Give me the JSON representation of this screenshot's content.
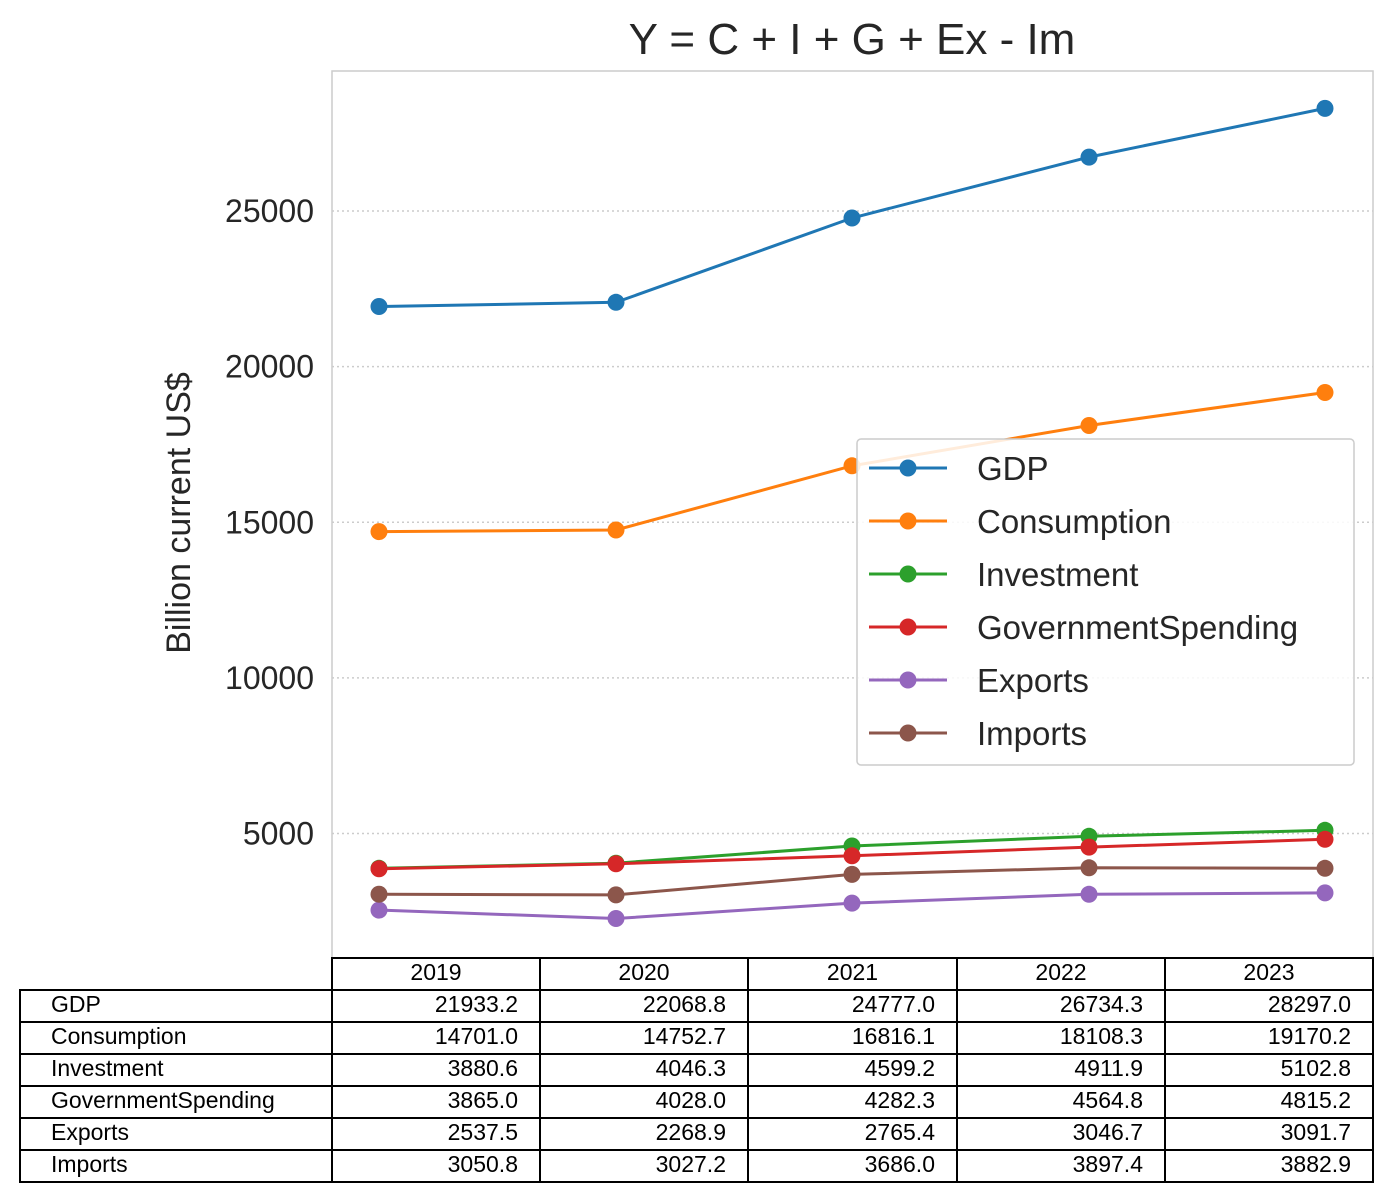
{
  "chart_data": {
    "type": "line",
    "title": "Y = C + I + G + Ex - Im",
    "ylabel": "Billion current US$",
    "xlabel": "",
    "categories": [
      "2019",
      "2020",
      "2021",
      "2022",
      "2023"
    ],
    "ylim": [
      1000,
      29500
    ],
    "yticks": [
      "5000",
      "10000",
      "15000",
      "20000",
      "25000"
    ],
    "grid": "horizontal dotted",
    "legend_position": "center-right",
    "series": [
      {
        "name": "GDP",
        "color": "#1f77b4",
        "values": [
          21933.2,
          22068.8,
          24777.0,
          26734.3,
          28297.0
        ],
        "labels": [
          "21933.2",
          "22068.8",
          "24777.0",
          "26734.3",
          "28297.0"
        ]
      },
      {
        "name": "Consumption",
        "color": "#ff7f0e",
        "values": [
          14701.0,
          14752.7,
          16816.1,
          18108.3,
          19170.2
        ],
        "labels": [
          "14701.0",
          "14752.7",
          "16816.1",
          "18108.3",
          "19170.2"
        ]
      },
      {
        "name": "Investment",
        "color": "#2ca02c",
        "values": [
          3880.6,
          4046.3,
          4599.2,
          4911.9,
          5102.8
        ],
        "labels": [
          "3880.6",
          "4046.3",
          "4599.2",
          "4911.9",
          "5102.8"
        ]
      },
      {
        "name": "GovernmentSpending",
        "color": "#d62728",
        "values": [
          3865.0,
          4028.0,
          4282.3,
          4564.8,
          4815.2
        ],
        "labels": [
          "3865.0",
          "4028.0",
          "4282.3",
          "4564.8",
          "4815.2"
        ]
      },
      {
        "name": "Exports",
        "color": "#9467bd",
        "values": [
          2537.5,
          2268.9,
          2765.4,
          3046.7,
          3091.7
        ],
        "labels": [
          "2537.5",
          "2268.9",
          "2765.4",
          "3046.7",
          "3091.7"
        ]
      },
      {
        "name": "Imports",
        "color": "#8c564b",
        "values": [
          3050.8,
          3027.2,
          3686.0,
          3897.4,
          3882.9
        ],
        "labels": [
          "3050.8",
          "3027.2",
          "3686.0",
          "3897.4",
          "3882.9"
        ]
      }
    ]
  }
}
